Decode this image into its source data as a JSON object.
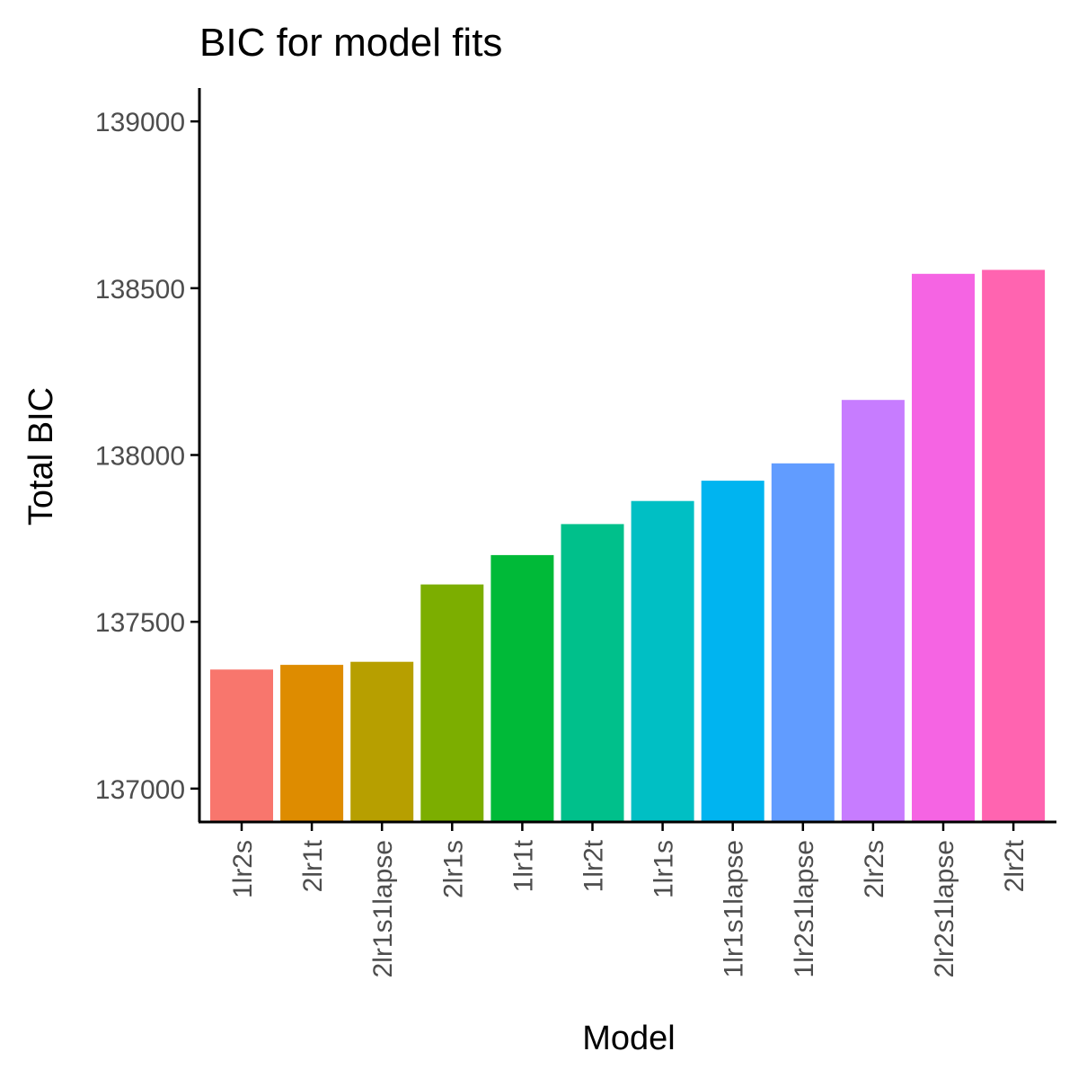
{
  "chart_data": {
    "type": "bar",
    "title": "BIC for model fits",
    "xlabel": "Model",
    "ylabel": "Total BIC",
    "categories": [
      "1lr2s",
      "2lr1t",
      "2lr1s1lapse",
      "2lr1s",
      "1lr1t",
      "1lr2t",
      "1lr1s",
      "1lr1s1lapse",
      "1lr2s1lapse",
      "2lr2s",
      "2lr2s1lapse",
      "2lr2t"
    ],
    "values": [
      137357,
      137371,
      137380,
      137612,
      137700,
      137793,
      137862,
      137923,
      137975,
      138165,
      138543,
      138555
    ],
    "colors": [
      "#F8766D",
      "#DE8C00",
      "#B79F00",
      "#7CAE00",
      "#00BA38",
      "#00C08B",
      "#00BFC4",
      "#00B4F0",
      "#619CFF",
      "#C77CFF",
      "#F564E3",
      "#FF64B0"
    ],
    "yticks": [
      137000,
      137500,
      138000,
      138500,
      139000
    ],
    "ylim": [
      136900,
      139100
    ],
    "grid": false,
    "legend": "none"
  }
}
